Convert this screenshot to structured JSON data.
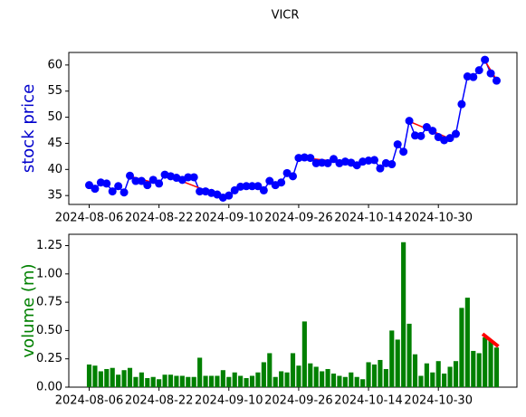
{
  "chart_data": [
    {
      "type": "line",
      "title": "VICR",
      "ylabel": "stock price",
      "ylabel_color": "#0000cc",
      "categories": [
        "2024-08-06",
        null,
        null,
        null,
        null,
        null,
        null,
        null,
        null,
        null,
        null,
        null,
        "2024-08-22",
        null,
        null,
        null,
        null,
        null,
        null,
        null,
        null,
        null,
        null,
        null,
        "2024-09-10",
        null,
        null,
        null,
        null,
        null,
        null,
        null,
        null,
        null,
        null,
        null,
        "2024-09-26",
        null,
        null,
        null,
        null,
        null,
        null,
        null,
        null,
        null,
        null,
        null,
        "2024-10-14",
        null,
        null,
        null,
        null,
        null,
        null,
        null,
        null,
        null,
        null,
        null,
        "2024-10-30",
        null,
        null,
        null,
        null,
        null,
        null,
        null,
        null,
        null,
        null
      ],
      "xlim": [
        -3.5,
        73.5
      ],
      "series": [
        {
          "color": "#0000ff",
          "values": [
            37,
            36.3,
            37.5,
            37.3,
            35.8,
            36.8,
            35.6,
            38.8,
            37.8,
            37.8,
            37,
            38,
            37.3,
            39,
            38.7,
            38.4,
            38,
            38.5,
            38.5,
            35.8,
            35.8,
            35.5,
            35.2,
            34.6,
            35,
            36,
            36.7,
            36.8,
            36.8,
            36.8,
            36,
            37.8,
            37,
            37.5,
            39.3,
            38.7,
            42.2,
            42.3,
            42.2,
            41.2,
            41.3,
            41.2,
            42,
            41.2,
            41.5,
            41.3,
            40.8,
            41.5,
            41.7,
            41.8,
            40.2,
            41.2,
            41,
            44.8,
            43.4,
            49.3,
            46.5,
            46.4,
            48.1,
            47.4,
            46.2,
            45.6,
            46,
            46.8,
            52.5,
            57.8,
            57.7,
            59,
            61,
            58.4,
            57
          ]
        }
      ],
      "trend_lines": {
        "color": "#ff0000",
        "segments": [
          {
            "x": [
              7,
              12
            ],
            "y": [
              38.7,
              37.2
            ]
          },
          {
            "x": [
              13,
              23
            ],
            "y": [
              39,
              34.7
            ]
          },
          {
            "x": [
              37,
              47
            ],
            "y": [
              42.2,
              41
            ]
          },
          {
            "x": [
              55,
              62
            ],
            "y": [
              49.2,
              45.9
            ]
          },
          {
            "x": [
              68,
              70
            ],
            "y": [
              60.8,
              57.2
            ]
          }
        ]
      },
      "ylim": [
        33.3,
        62.4
      ],
      "yticks": [
        35,
        40,
        45,
        50,
        55,
        60
      ]
    },
    {
      "type": "bar",
      "ylabel": "volume (m)",
      "ylabel_color": "#008000",
      "color": "#008000",
      "values": [
        0.2,
        0.19,
        0.14,
        0.16,
        0.17,
        0.11,
        0.15,
        0.17,
        0.09,
        0.13,
        0.08,
        0.09,
        0.07,
        0.11,
        0.11,
        0.1,
        0.1,
        0.09,
        0.09,
        0.26,
        0.1,
        0.1,
        0.1,
        0.15,
        0.09,
        0.13,
        0.1,
        0.08,
        0.1,
        0.13,
        0.22,
        0.3,
        0.09,
        0.14,
        0.13,
        0.3,
        0.19,
        0.58,
        0.21,
        0.18,
        0.14,
        0.16,
        0.12,
        0.1,
        0.09,
        0.13,
        0.09,
        0.07,
        0.22,
        0.2,
        0.24,
        0.16,
        0.5,
        0.42,
        1.28,
        0.56,
        0.29,
        0.1,
        0.21,
        0.13,
        0.23,
        0.12,
        0.18,
        0.23,
        0.7,
        0.79,
        0.32,
        0.3,
        0.44,
        0.41,
        0.35
      ],
      "trend_lines": {
        "color": "#ff0000",
        "segments": [
          {
            "x": [
              67.6,
              70.3
            ],
            "y": [
              0.47,
              0.36
            ]
          }
        ]
      },
      "ylim": [
        0,
        1.35
      ],
      "yticks": [
        {
          "value": 0,
          "label": "0.00"
        },
        {
          "value": 0.25,
          "label": "0.25"
        },
        {
          "value": 0.5,
          "label": "0.50"
        },
        {
          "value": 0.75,
          "label": "0.75"
        },
        {
          "value": 1,
          "label": "1.00"
        },
        {
          "value": 1.25,
          "label": "1.25"
        }
      ]
    }
  ]
}
